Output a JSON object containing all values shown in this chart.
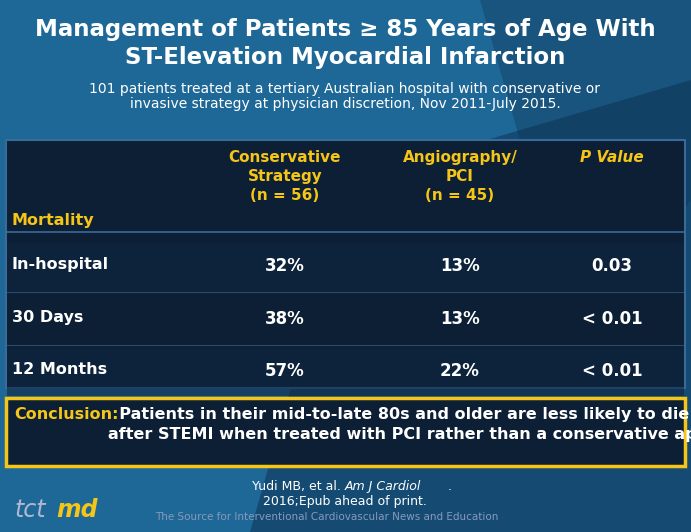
{
  "title_line1": "Management of Patients ≥ 85 Years of Age With",
  "title_line2": "ST-Elevation Myocardial Infarction",
  "subtitle_line1": "101 patients treated at a tertiary Australian hospital with conservative or",
  "subtitle_line2": "invasive strategy at physician discretion, Nov 2011-July 2015.",
  "bg_color": "#1e6898",
  "bg_dark": "#0d2d4a",
  "table_bg": "#0c1f35",
  "table_border": "#3a6a9a",
  "conclusion_bg": "#0c1f35",
  "conclusion_border": "#f5c518",
  "col_header_color": "#f5c518",
  "row_header_color": "#f5c518",
  "data_color": "#ffffff",
  "title_color": "#ffffff",
  "subtitle_color": "#ffffff",
  "conclusion_label_color": "#f5c518",
  "conclusion_text_color": "#ffffff",
  "ref_color": "#ffffff",
  "row_labels": [
    "Mortality",
    "In-hospital",
    "30 Days",
    "12 Months"
  ],
  "col1_data": [
    "32%",
    "38%",
    "57%"
  ],
  "col2_data": [
    "13%",
    "13%",
    "22%"
  ],
  "col3_data": [
    "0.03",
    "< 0.01",
    "< 0.01"
  ],
  "conclusion_label": "Conclusion:",
  "conclusion_body": "  Patients in their mid-to-late 80s and older are less likely to die\nafter STEMI when treated with PCI rather than a conservative approach.",
  "ref_normal1": "Yudi MB, et al. ",
  "ref_italic": "Am J Cardiol",
  "ref_normal2": ".",
  "ref_line2": "2016;Epub ahead of print.",
  "footer": "The Source for Interventional Cardiovascular News and Education"
}
